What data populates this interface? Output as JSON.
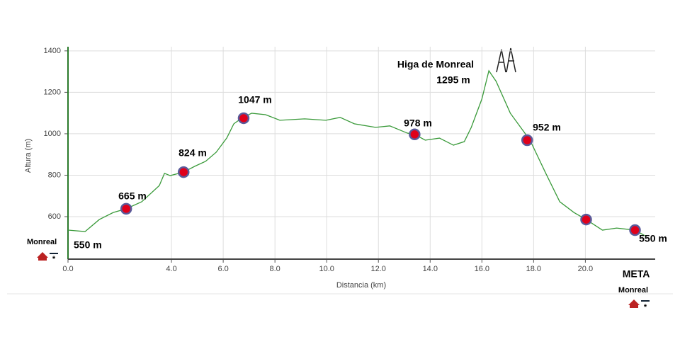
{
  "chart_data": {
    "type": "line",
    "x_label": "Distancia (km)",
    "y_label": "Altura (m)",
    "xlim": [
      0,
      22.7
    ],
    "xticks": [
      {
        "value": 0,
        "label": "0.0"
      },
      {
        "value": 4,
        "label": "4.0"
      },
      {
        "value": 6,
        "label": "6.0"
      },
      {
        "value": 8,
        "label": "8.0"
      },
      {
        "value": 10,
        "label": "10.0"
      },
      {
        "value": 12,
        "label": "12.0"
      },
      {
        "value": 14,
        "label": "14.0"
      },
      {
        "value": 16,
        "label": "16.0"
      },
      {
        "value": 18,
        "label": "18.0"
      },
      {
        "value": 20,
        "label": "20.0"
      }
    ],
    "ylim": [
      395,
      1420
    ],
    "yticks": [
      600,
      800,
      1000,
      1200,
      1400
    ],
    "grid": true,
    "series": [
      {
        "color": "#3a9a3a",
        "x": [
          0,
          0.66,
          1.21,
          1.75,
          2.25,
          2.85,
          3.53,
          3.73,
          3.95,
          4.47,
          4.9,
          5.32,
          5.73,
          6.14,
          6.41,
          6.71,
          7.1,
          7.64,
          8.19,
          9.15,
          9.97,
          10.52,
          11.07,
          11.89,
          12.44,
          13.12,
          13.4,
          13.81,
          14.36,
          14.9,
          15.32,
          15.59,
          16.0,
          16.27,
          16.55,
          17.1,
          17.86,
          18.47,
          19.01,
          19.56,
          20.03,
          20.66,
          21.21,
          21.92,
          22.3
        ],
        "values": [
          535,
          528,
          586,
          620,
          638,
          672,
          750,
          809,
          798,
          815,
          843,
          867,
          911,
          980,
          1048,
          1075,
          1099,
          1092,
          1065,
          1072,
          1065,
          1079,
          1048,
          1031,
          1038,
          1003,
          997,
          969,
          979,
          945,
          962,
          1031,
          1168,
          1304,
          1253,
          1099,
          969,
          809,
          672,
          620,
          586,
          535,
          545,
          535,
          508
        ]
      },
      {
        "color": "#e0001b",
        "x": [
          2.25,
          4.47,
          6.79,
          13.4,
          17.75,
          20.03,
          21.92
        ],
        "values": [
          638,
          815,
          1075,
          997,
          969,
          586,
          535
        ]
      }
    ],
    "annotations": [
      "665 m",
      "824 m",
      "1047 m",
      "978 m",
      "952 m",
      "550 m",
      "550 m",
      "Higa de Monreal",
      "1295 m"
    ],
    "start": {
      "name": "Monreal"
    },
    "finish": {
      "label": "META",
      "name": "Monreal"
    }
  }
}
